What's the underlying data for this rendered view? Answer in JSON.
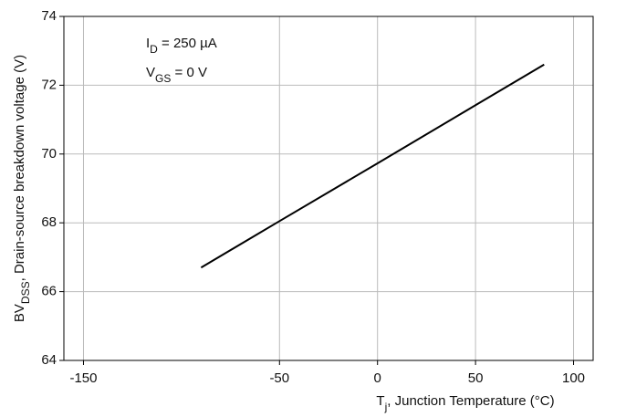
{
  "chart_data": {
    "type": "line",
    "x_label": {
      "main": "T",
      "sub": "j",
      "rest": ", Junction Temperature (°C)"
    },
    "y_label": {
      "main": "BV",
      "sub": "DSS",
      "rest": ", Drain-source breakdown voltage (V)"
    },
    "annotations": [
      {
        "main": "I",
        "sub": "D",
        "rest": " = 250 µA"
      },
      {
        "main": "V",
        "sub": "GS",
        "rest": " = 0 V"
      }
    ],
    "x": [
      -90,
      -50,
      0,
      50,
      85
    ],
    "series": [
      {
        "color": "#000000",
        "values": [
          66.7,
          68.05,
          69.73,
          71.42,
          72.6
        ]
      }
    ],
    "xlim": [
      -160,
      110
    ],
    "xticks": [
      -150,
      -50,
      0,
      50,
      100
    ],
    "ylim": [
      64,
      74
    ],
    "yticks": [
      64,
      66,
      68,
      70,
      72,
      74
    ],
    "grid": true
  }
}
